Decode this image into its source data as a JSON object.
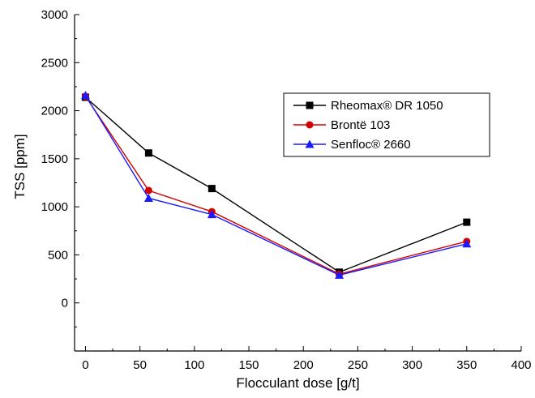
{
  "chart_data": {
    "type": "line",
    "xlabel": "Flocculant dose [g/t]",
    "ylabel": "TSS [ppm]",
    "xlim": [
      -10,
      400
    ],
    "ylim": [
      -500,
      3000
    ],
    "xticks": [
      0,
      50,
      100,
      150,
      200,
      250,
      300,
      350,
      400
    ],
    "yticks": [
      0,
      500,
      1000,
      1500,
      2000,
      2500,
      3000
    ],
    "x_tick_labels": [
      "0",
      "50",
      "100",
      "150",
      "200",
      "250",
      "300",
      "350",
      "400"
    ],
    "y_tick_labels": [
      "0",
      "500",
      "1000",
      "1500",
      "2000",
      "2500",
      "3000"
    ],
    "grid": false,
    "legend_position": "top-right",
    "series": [
      {
        "name": "Rheomax® DR 1050",
        "color": "#000000",
        "marker": "square",
        "x": [
          0,
          58,
          116,
          233,
          350
        ],
        "y": [
          2140,
          1560,
          1190,
          320,
          840
        ]
      },
      {
        "name": "Brontë 103",
        "color": "#d40000",
        "marker": "circle",
        "x": [
          0,
          58,
          116,
          233,
          350
        ],
        "y": [
          2150,
          1170,
          950,
          300,
          640
        ]
      },
      {
        "name": "Senfloc® 2660",
        "color": "#1a1aff",
        "marker": "triangle",
        "x": [
          0,
          58,
          116,
          233,
          350
        ],
        "y": [
          2160,
          1090,
          920,
          290,
          615
        ]
      }
    ]
  }
}
